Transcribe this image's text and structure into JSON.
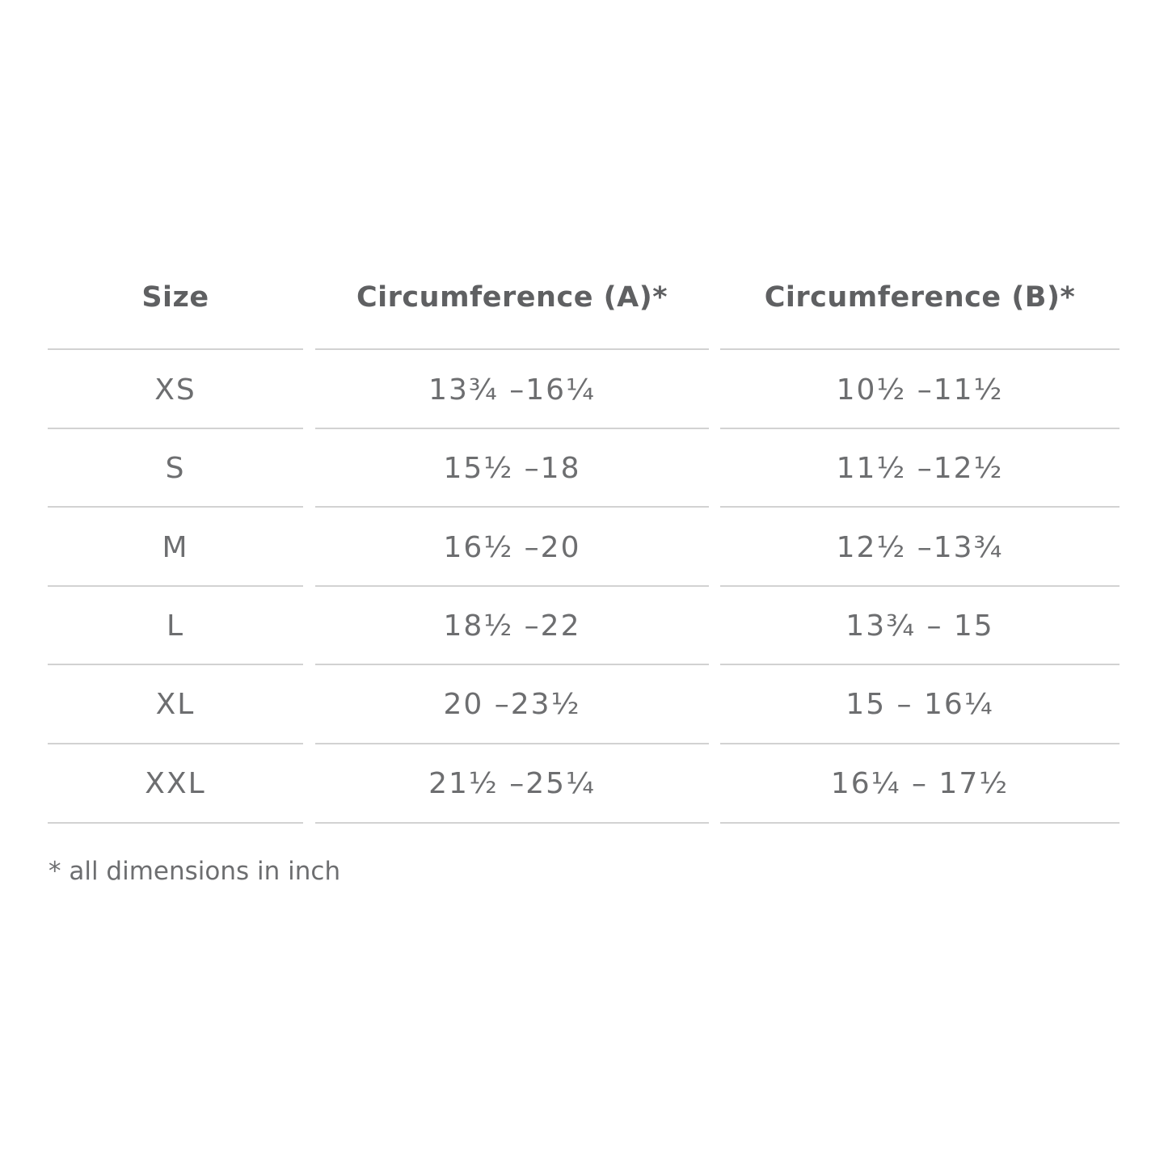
{
  "table": {
    "headers": [
      "Size",
      "Circumference (A)*",
      "Circumference (B)*"
    ],
    "rows": [
      [
        "XS",
        "13¾ –16¼",
        "10½ –11½"
      ],
      [
        "S",
        "15½ –18",
        "11½ –12½"
      ],
      [
        "M",
        "16½ –20",
        "12½ –13¾"
      ],
      [
        "L",
        "18½ –22",
        "13¾ – 15"
      ],
      [
        "XL",
        "20 –23½",
        "15 – 16¼"
      ],
      [
        "XXL",
        "21½ –25¼",
        "16¼ – 17½"
      ]
    ]
  },
  "footnote": "* all dimensions in inch",
  "colors": {
    "header": "#5f6062",
    "text": "#6d6e70",
    "rule": "#d2d2d2"
  }
}
